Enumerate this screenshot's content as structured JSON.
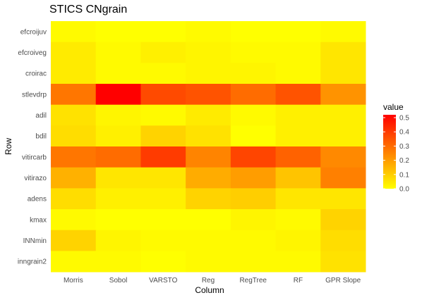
{
  "chart_data": {
    "type": "heatmap",
    "title": "STICS CNgrain",
    "xlabel": "Column",
    "ylabel": "Row",
    "columns": [
      "Morris",
      "Sobol",
      "VARSTO",
      "Reg",
      "RegTree",
      "RF",
      "GPR Slope"
    ],
    "rows": [
      "efcroijuv",
      "efcroiveg",
      "croirac",
      "stlevdrp",
      "adil",
      "bdil",
      "vitircarb",
      "vitirazo",
      "adens",
      "kmax",
      "INNmin",
      "inngrain2"
    ],
    "values": [
      [
        0.01,
        0.0,
        0.0,
        0.01,
        0.0,
        0.0,
        0.01
      ],
      [
        0.04,
        0.01,
        0.03,
        0.02,
        0.01,
        0.01,
        0.05
      ],
      [
        0.04,
        0.01,
        0.01,
        0.02,
        0.02,
        0.01,
        0.05
      ],
      [
        0.28,
        0.52,
        0.37,
        0.35,
        0.3,
        0.35,
        0.22
      ],
      [
        0.06,
        0.02,
        0.01,
        0.04,
        0.01,
        0.03,
        0.03
      ],
      [
        0.07,
        0.03,
        0.09,
        0.06,
        0.0,
        0.03,
        0.03
      ],
      [
        0.28,
        0.3,
        0.4,
        0.25,
        0.38,
        0.32,
        0.24
      ],
      [
        0.16,
        0.05,
        0.05,
        0.17,
        0.2,
        0.12,
        0.26
      ],
      [
        0.07,
        0.03,
        0.03,
        0.09,
        0.1,
        0.05,
        0.05
      ],
      [
        0.01,
        0.0,
        0.0,
        0.0,
        0.02,
        0.01,
        0.09
      ],
      [
        0.09,
        0.02,
        0.01,
        0.01,
        0.01,
        0.02,
        0.07
      ],
      [
        0.01,
        0.01,
        0.0,
        0.01,
        0.01,
        0.01,
        0.06
      ]
    ],
    "legend": {
      "title": "value",
      "ticks": [
        "0.0",
        "0.1",
        "0.2",
        "0.3",
        "0.4",
        "0.5"
      ],
      "range": [
        0,
        0.52
      ],
      "low_color": "#FFFF00",
      "high_color": "#FF0000",
      "placement": "right"
    },
    "grid": true
  }
}
